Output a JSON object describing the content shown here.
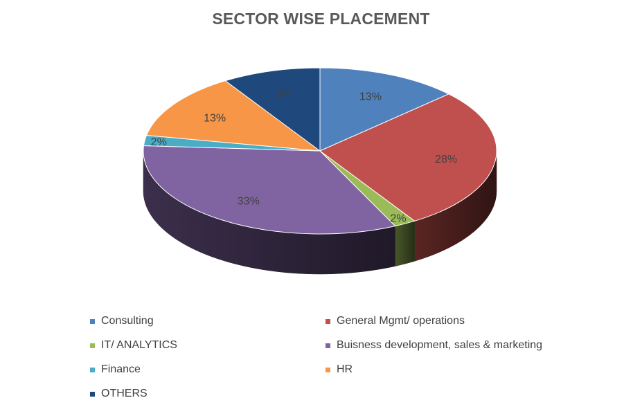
{
  "chart_data": {
    "type": "pie",
    "title": "SECTOR WISE PLACEMENT",
    "categories": [
      "Consulting",
      "General Mgmt/ operations",
      "IT/ ANALYTICS",
      "Buisness development, sales & marketing",
      "Finance",
      "HR",
      "OTHERS"
    ],
    "values": [
      13,
      28,
      2,
      33,
      2,
      13,
      9
    ],
    "labels": [
      "13%",
      "28%",
      "2%",
      "33%",
      "2%",
      "13%",
      "9%"
    ],
    "colors": [
      "#4f81bd",
      "#c0504d",
      "#9bbb59",
      "#8064a2",
      "#4bacc6",
      "#f79646",
      "#1f497d"
    ],
    "style": "3d",
    "legend_position": "bottom"
  }
}
